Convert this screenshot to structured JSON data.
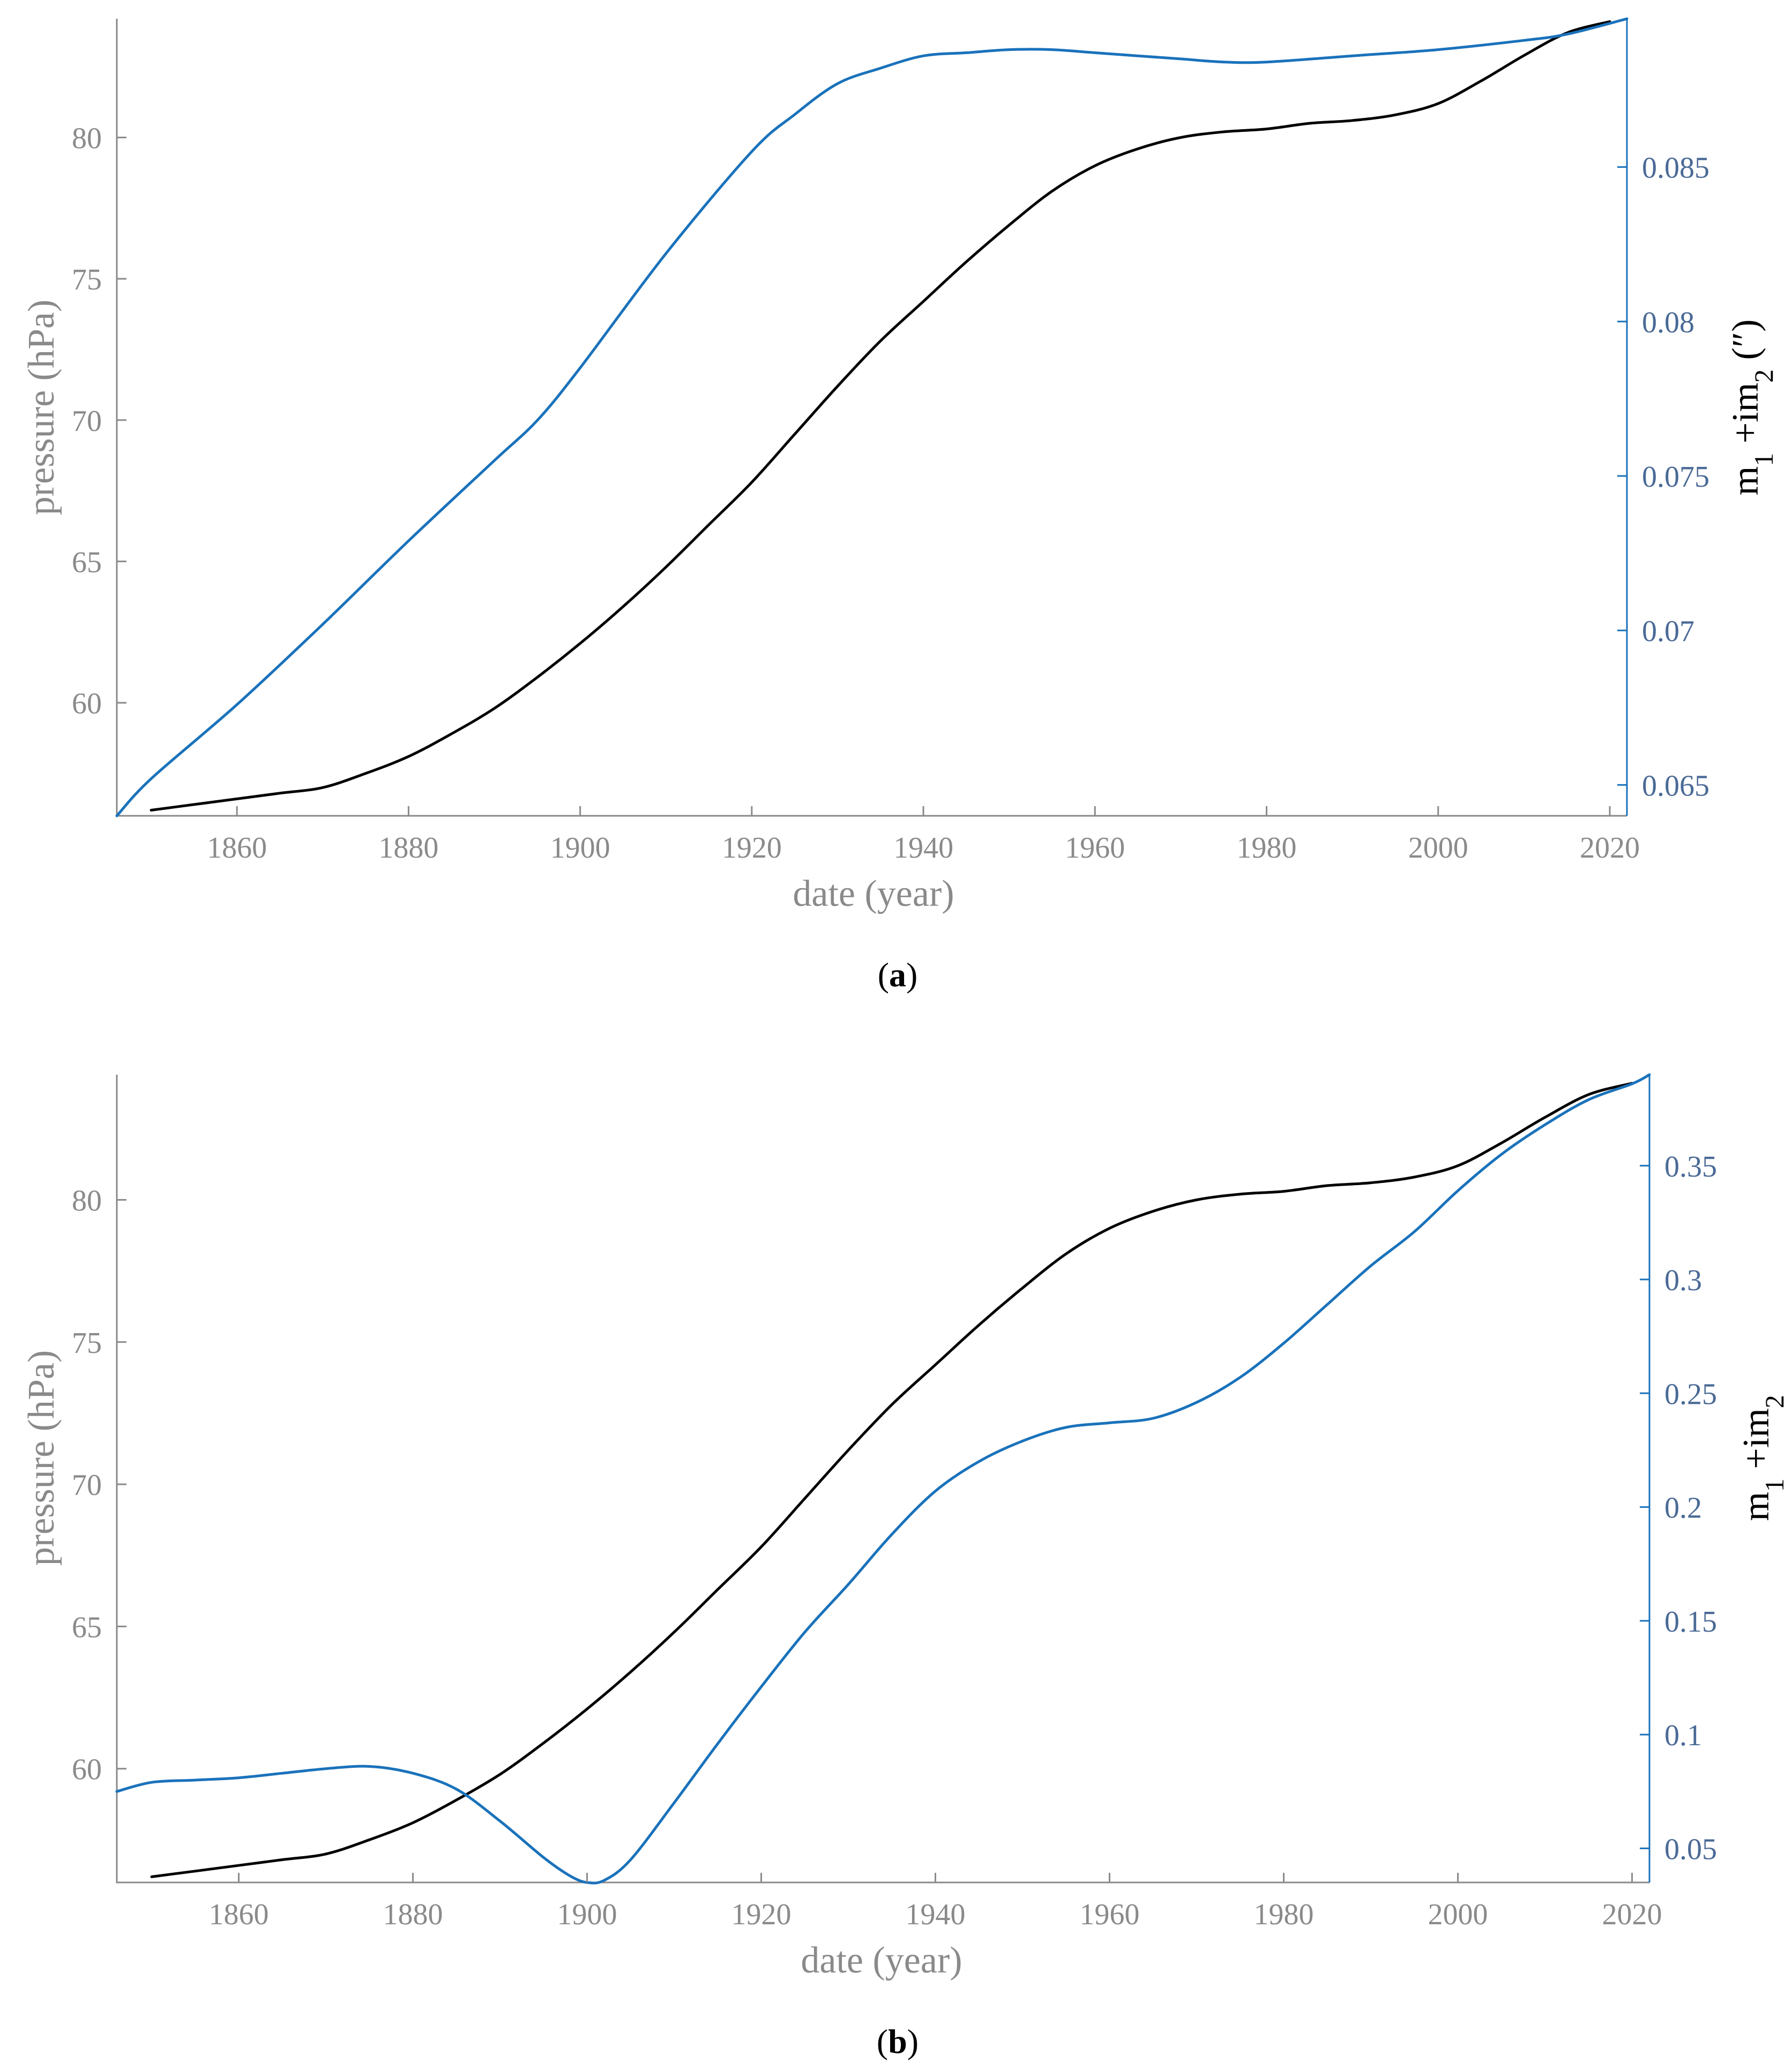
{
  "colors": {
    "left_axis": "#8a8a8a",
    "right_axis": "#4a6a96",
    "pressure_line": "#000000",
    "model_line": "#1a72bb"
  },
  "chart_data": [
    {
      "type": "line",
      "caption": {
        "open": "(",
        "letter": "a",
        "close": ")"
      },
      "xlabel": "date (year)",
      "ylabel": "pressure (hPa)",
      "y2label_base": "m",
      "y2label_sub1": "1",
      "y2label_mid": " +im",
      "y2label_sub2": "2",
      "y2label_unit": " (″)",
      "xlim": [
        1846,
        2022
      ],
      "ylim": [
        56,
        84.2
      ],
      "y2lim": [
        0.064,
        0.0898
      ],
      "x_ticks": [
        1860,
        1880,
        1900,
        1920,
        1940,
        1960,
        1980,
        2000,
        2020
      ],
      "x_tick_labels": [
        "1860",
        "1880",
        "1900",
        "1920",
        "1940",
        "1960",
        "1980",
        "2000",
        "2020"
      ],
      "y_ticks": [
        60,
        65,
        70,
        75,
        80
      ],
      "y_tick_labels": [
        "60",
        "65",
        "70",
        "75",
        "80"
      ],
      "y2_ticks": [
        0.065,
        0.07,
        0.075,
        0.08,
        0.085
      ],
      "y2_tick_labels": [
        "0.065",
        "0.07",
        "0.075",
        "0.08",
        "0.085"
      ],
      "series": [
        {
          "name": "pressure",
          "axis": "left",
          "x": [
            1850,
            1855,
            1860,
            1865,
            1870,
            1875,
            1880,
            1885,
            1890,
            1895,
            1900,
            1905,
            1910,
            1915,
            1920,
            1925,
            1930,
            1935,
            1940,
            1945,
            1950,
            1955,
            1960,
            1965,
            1970,
            1975,
            1980,
            1985,
            1990,
            1995,
            2000,
            2005,
            2010,
            2015,
            2020
          ],
          "values": [
            56.2,
            56.4,
            56.6,
            56.8,
            57.0,
            57.5,
            58.1,
            58.9,
            59.8,
            60.9,
            62.1,
            63.4,
            64.8,
            66.3,
            67.8,
            69.5,
            71.2,
            72.8,
            74.2,
            75.6,
            76.9,
            78.1,
            79.0,
            79.6,
            80.0,
            80.2,
            80.3,
            80.5,
            80.6,
            80.8,
            81.2,
            82.0,
            82.9,
            83.7,
            84.1
          ]
        },
        {
          "name": "m1 + im2",
          "axis": "right",
          "x": [
            1846,
            1850,
            1860,
            1870,
            1880,
            1890,
            1895,
            1900,
            1910,
            1920,
            1925,
            1930,
            1935,
            1940,
            1945,
            1950,
            1955,
            1960,
            1965,
            1970,
            1975,
            1980,
            1990,
            2000,
            2010,
            2015,
            2022
          ],
          "values": [
            0.064,
            0.0652,
            0.0676,
            0.0702,
            0.0729,
            0.0755,
            0.0768,
            0.0785,
            0.0822,
            0.0855,
            0.0867,
            0.0877,
            0.0882,
            0.0886,
            0.0887,
            0.0888,
            0.0888,
            0.0887,
            0.0886,
            0.0885,
            0.0884,
            0.0884,
            0.0886,
            0.0888,
            0.0891,
            0.0893,
            0.0898
          ]
        }
      ]
    },
    {
      "type": "line",
      "caption": {
        "open": "(",
        "letter": "b",
        "close": ")"
      },
      "xlabel": "date (year)",
      "ylabel": "pressure (hPa)",
      "y2label_base": "m",
      "y2label_sub1": "1",
      "y2label_mid": " +im",
      "y2label_sub2": "2",
      "y2label_unit": "",
      "xlim": [
        1846,
        2022
      ],
      "ylim": [
        56,
        84.4
      ],
      "y2lim": [
        0.035,
        0.39
      ],
      "x_ticks": [
        1860,
        1880,
        1900,
        1920,
        1940,
        1960,
        1980,
        2000,
        2020
      ],
      "x_tick_labels": [
        "1860",
        "1880",
        "1900",
        "1920",
        "1940",
        "1960",
        "1980",
        "2000",
        "2020"
      ],
      "y_ticks": [
        60,
        65,
        70,
        75,
        80
      ],
      "y_tick_labels": [
        "60",
        "65",
        "70",
        "75",
        "80"
      ],
      "y2_ticks": [
        0.05,
        0.1,
        0.15,
        0.2,
        0.25,
        0.3,
        0.35
      ],
      "y2_tick_labels": [
        "0.05",
        "0.1",
        "0.15",
        "0.2",
        "0.25",
        "0.3",
        "0.35"
      ],
      "series": [
        {
          "name": "pressure",
          "axis": "left",
          "x": [
            1850,
            1855,
            1860,
            1865,
            1870,
            1875,
            1880,
            1885,
            1890,
            1895,
            1900,
            1905,
            1910,
            1915,
            1920,
            1925,
            1930,
            1935,
            1940,
            1945,
            1950,
            1955,
            1960,
            1965,
            1970,
            1975,
            1980,
            1985,
            1990,
            1995,
            2000,
            2005,
            2010,
            2015,
            2020
          ],
          "values": [
            56.2,
            56.4,
            56.6,
            56.8,
            57.0,
            57.5,
            58.1,
            58.9,
            59.8,
            60.9,
            62.1,
            63.4,
            64.8,
            66.3,
            67.8,
            69.5,
            71.2,
            72.8,
            74.2,
            75.6,
            76.9,
            78.1,
            79.0,
            79.6,
            80.0,
            80.2,
            80.3,
            80.5,
            80.6,
            80.8,
            81.2,
            82.0,
            82.9,
            83.7,
            84.1
          ]
        },
        {
          "name": "m1 + im2",
          "axis": "right",
          "x": [
            1846,
            1850,
            1855,
            1860,
            1865,
            1870,
            1875,
            1880,
            1885,
            1890,
            1895,
            1898,
            1900,
            1902,
            1905,
            1910,
            1915,
            1920,
            1925,
            1930,
            1935,
            1940,
            1945,
            1950,
            1955,
            1960,
            1965,
            1970,
            1975,
            1980,
            1985,
            1990,
            1995,
            2000,
            2005,
            2010,
            2015,
            2020,
            2022
          ],
          "values": [
            0.075,
            0.079,
            0.08,
            0.081,
            0.083,
            0.085,
            0.086,
            0.083,
            0.076,
            0.062,
            0.046,
            0.038,
            0.035,
            0.036,
            0.045,
            0.07,
            0.096,
            0.121,
            0.145,
            0.166,
            0.188,
            0.207,
            0.22,
            0.229,
            0.235,
            0.237,
            0.239,
            0.246,
            0.257,
            0.272,
            0.289,
            0.306,
            0.321,
            0.339,
            0.355,
            0.368,
            0.379,
            0.386,
            0.39
          ]
        }
      ]
    }
  ]
}
